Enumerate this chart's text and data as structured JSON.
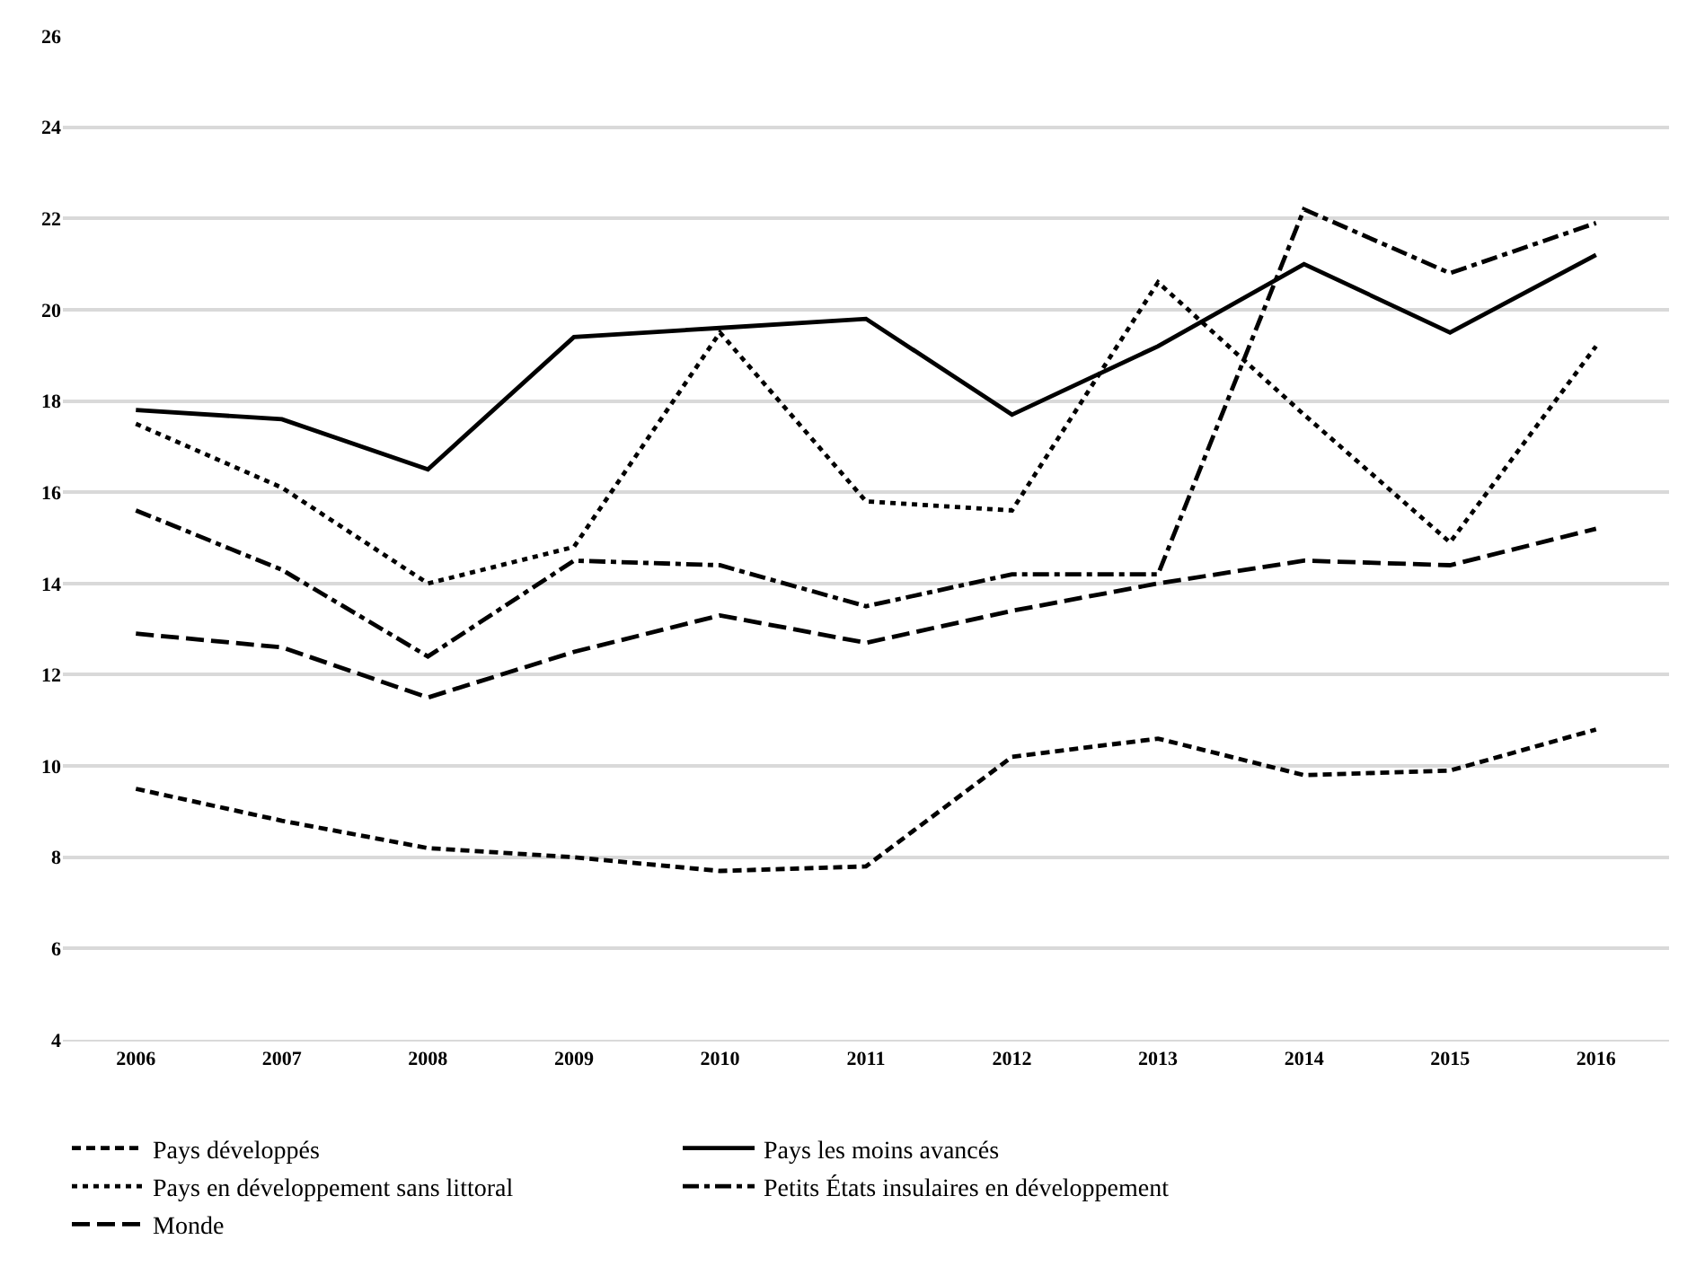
{
  "chart_data": {
    "type": "line",
    "categories": [
      "2006",
      "2007",
      "2008",
      "2009",
      "2010",
      "2011",
      "2012",
      "2013",
      "2014",
      "2015",
      "2016"
    ],
    "series": [
      {
        "name": "Pays développés",
        "color": "#000000",
        "line_style": "dashed",
        "values": [
          9.5,
          8.8,
          8.2,
          8.0,
          7.7,
          7.8,
          10.2,
          10.6,
          9.8,
          9.9,
          10.8
        ]
      },
      {
        "name": "Pays les moins avancés",
        "color": "#000000",
        "line_style": "solid",
        "values": [
          17.8,
          17.6,
          16.5,
          19.4,
          19.6,
          19.8,
          17.7,
          19.2,
          21.0,
          19.5,
          21.2
        ]
      },
      {
        "name": "Pays en développement sans littoral",
        "color": "#000000",
        "line_style": "dotted",
        "values": [
          17.5,
          16.1,
          14.0,
          14.8,
          19.5,
          15.8,
          15.6,
          20.6,
          17.7,
          14.9,
          19.2
        ]
      },
      {
        "name": "Petits États insulaires en développement",
        "color": "#000000",
        "line_style": "dashdot",
        "values": [
          15.6,
          14.3,
          12.4,
          14.5,
          14.4,
          13.5,
          14.2,
          14.2,
          22.2,
          20.8,
          21.9
        ]
      },
      {
        "name": "Monde",
        "color": "#000000",
        "line_style": "longdash",
        "values": [
          12.9,
          12.6,
          11.5,
          12.5,
          13.3,
          12.7,
          13.4,
          14.0,
          14.5,
          14.4,
          15.2
        ]
      }
    ],
    "ylim": [
      4,
      26
    ],
    "yticks": [
      4,
      6,
      8,
      10,
      12,
      14,
      16,
      18,
      20,
      22,
      24,
      26
    ],
    "grid": "y",
    "legend": "bottom",
    "marker": "none"
  }
}
